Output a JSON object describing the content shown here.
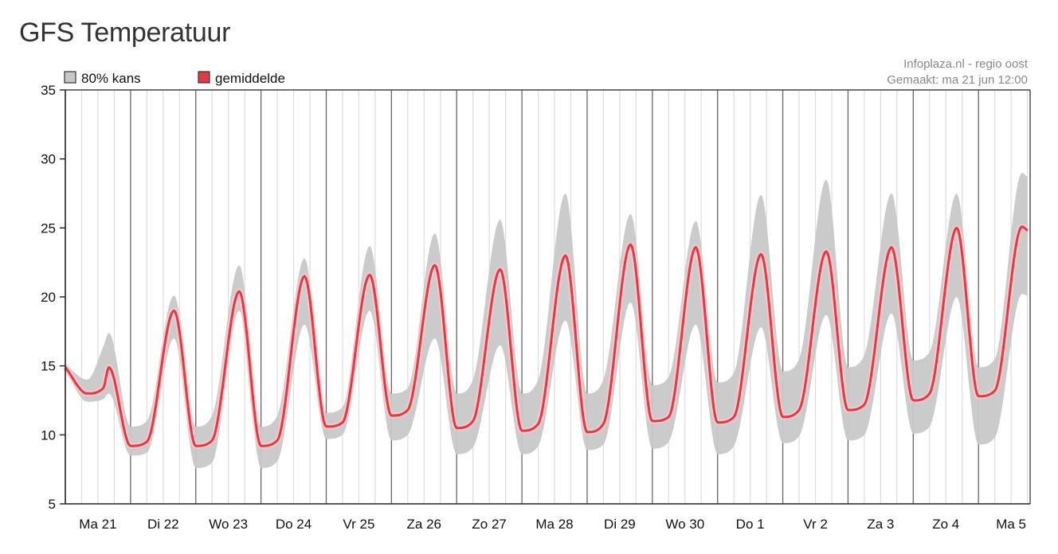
{
  "title": "GFS Temperatuur",
  "credits": {
    "line1": "Infoplaza.nl - regio oost",
    "line2": "Gemaakt: ma 21 jun 12:00"
  },
  "chart_data": {
    "type": "area",
    "ylim": [
      5,
      35
    ],
    "yticks": [
      5,
      10,
      15,
      20,
      25,
      30,
      35
    ],
    "days": [
      "Ma 21",
      "Di 22",
      "Wo 23",
      "Do 24",
      "Vr 25",
      "Za 26",
      "Zo 27",
      "Ma 28",
      "Di 29",
      "Wo 30",
      "Do 1",
      "Vr 2",
      "Za 3",
      "Zo 4",
      "Ma 5"
    ],
    "legend": [
      {
        "label": "80% kans",
        "color": "#c8c8c8"
      },
      {
        "label": "gemiddelde",
        "color": "#e03a45"
      }
    ],
    "grid": true,
    "x_units": "hours since Ma 21 00:00",
    "series": [
      {
        "name": "gemiddelde",
        "color": "#e03a45",
        "x": [
          0,
          8,
          14,
          16,
          24,
          30,
          40,
          48,
          54,
          64,
          72,
          78,
          88,
          96,
          102,
          112,
          120,
          126,
          136,
          144,
          150,
          160,
          168,
          174,
          184,
          192,
          198,
          208,
          216,
          222,
          232,
          240,
          246,
          256,
          264,
          270,
          280,
          288,
          294,
          304,
          312,
          318,
          328,
          336,
          342,
          352,
          354
        ],
        "values": [
          14.9,
          13.0,
          13.4,
          14.9,
          9.2,
          9.5,
          19.0,
          9.2,
          9.6,
          20.4,
          9.2,
          9.6,
          21.5,
          10.6,
          10.9,
          21.6,
          11.4,
          11.8,
          22.3,
          10.5,
          11.0,
          22.0,
          10.3,
          10.8,
          23.0,
          10.2,
          10.8,
          23.8,
          11.0,
          11.3,
          23.6,
          10.9,
          11.3,
          23.1,
          11.3,
          11.8,
          23.3,
          11.8,
          12.2,
          23.6,
          12.5,
          13.0,
          25.0,
          12.8,
          13.2,
          25.1,
          24.8
        ]
      },
      {
        "name": "80% kans (boven)",
        "color": "#c8c8c8",
        "x": [
          0,
          8,
          14,
          16,
          24,
          30,
          40,
          48,
          54,
          64,
          72,
          78,
          88,
          96,
          102,
          112,
          120,
          126,
          136,
          144,
          150,
          160,
          168,
          174,
          184,
          192,
          198,
          208,
          216,
          222,
          232,
          240,
          246,
          256,
          264,
          270,
          280,
          288,
          294,
          304,
          312,
          318,
          328,
          336,
          342,
          352,
          354
        ],
        "values": [
          15.1,
          14.0,
          16.4,
          17.4,
          10.6,
          11.0,
          20.1,
          10.6,
          11.4,
          22.3,
          10.6,
          11.4,
          22.8,
          11.6,
          12.0,
          23.7,
          13.0,
          13.4,
          24.6,
          13.0,
          14.0,
          25.6,
          13.0,
          14.0,
          27.5,
          13.0,
          14.0,
          26.0,
          13.6,
          14.2,
          25.5,
          13.8,
          14.5,
          27.4,
          14.6,
          15.5,
          28.5,
          14.9,
          15.8,
          27.5,
          15.4,
          16.0,
          27.5,
          14.9,
          15.5,
          29.0,
          28.7
        ]
      },
      {
        "name": "80% kans (onder)",
        "color": "#c8c8c8",
        "x": [
          0,
          8,
          14,
          16,
          24,
          30,
          40,
          48,
          54,
          64,
          72,
          78,
          88,
          96,
          102,
          112,
          120,
          126,
          136,
          144,
          150,
          160,
          168,
          174,
          184,
          192,
          198,
          208,
          216,
          222,
          232,
          240,
          246,
          256,
          264,
          270,
          280,
          288,
          294,
          304,
          312,
          318,
          328,
          336,
          342,
          352,
          354
        ],
        "values": [
          14.7,
          12.4,
          12.6,
          13.0,
          8.5,
          8.7,
          17.0,
          7.6,
          8.0,
          19.0,
          7.6,
          8.1,
          18.0,
          9.7,
          10.0,
          19.0,
          9.6,
          10.0,
          17.0,
          8.6,
          9.1,
          16.5,
          8.6,
          9.2,
          18.3,
          8.9,
          9.3,
          19.6,
          9.0,
          9.5,
          18.0,
          8.6,
          9.2,
          17.8,
          9.4,
          9.9,
          18.7,
          9.6,
          10.0,
          18.8,
          10.1,
          10.6,
          20.0,
          9.3,
          9.8,
          20.2,
          20.1
        ]
      }
    ]
  }
}
